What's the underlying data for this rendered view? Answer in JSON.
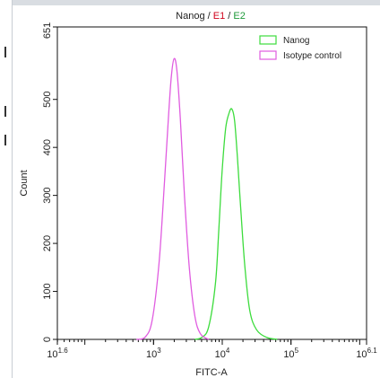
{
  "chart_data": {
    "type": "line",
    "title_parts": [
      {
        "text": "Nanog",
        "color": "#222222"
      },
      {
        "text": " / ",
        "color": "#222222"
      },
      {
        "text": "E1",
        "color": "#d0021b"
      },
      {
        "text": " / ",
        "color": "#222222"
      },
      {
        "text": "E2",
        "color": "#1f9a3a"
      }
    ],
    "xlabel": "FITC-A",
    "ylabel": "Count",
    "xscale": "log",
    "xlim_log10": [
      1.6,
      6.1
    ],
    "ylim": [
      0,
      651
    ],
    "x_ticks": [
      {
        "log": 1.6,
        "base": "10",
        "exp": "1.6"
      },
      {
        "log": 3,
        "base": "10",
        "exp": "3"
      },
      {
        "log": 4,
        "base": "10",
        "exp": "4"
      },
      {
        "log": 5,
        "base": "10",
        "exp": "5"
      },
      {
        "log": 6.1,
        "base": "10",
        "exp": "6.1"
      }
    ],
    "y_ticks": [
      0,
      100,
      200,
      300,
      400,
      500,
      651
    ],
    "legend_position": "top-right",
    "series": [
      {
        "name": "Nanog",
        "color": "#3ddc3d",
        "points": [
          [
            3.6,
            0
          ],
          [
            3.7,
            4
          ],
          [
            3.8,
            25
          ],
          [
            3.9,
            115
          ],
          [
            3.95,
            230
          ],
          [
            4.0,
            355
          ],
          [
            4.05,
            440
          ],
          [
            4.1,
            472
          ],
          [
            4.14,
            480
          ],
          [
            4.18,
            455
          ],
          [
            4.22,
            380
          ],
          [
            4.27,
            270
          ],
          [
            4.33,
            150
          ],
          [
            4.4,
            60
          ],
          [
            4.5,
            20
          ],
          [
            4.65,
            4
          ],
          [
            4.8,
            0
          ]
        ]
      },
      {
        "name": "Isotype control",
        "color": "#e05ce0",
        "points": [
          [
            2.75,
            0
          ],
          [
            2.88,
            5
          ],
          [
            2.98,
            40
          ],
          [
            3.08,
            160
          ],
          [
            3.16,
            330
          ],
          [
            3.22,
            470
          ],
          [
            3.26,
            550
          ],
          [
            3.3,
            585
          ],
          [
            3.34,
            560
          ],
          [
            3.39,
            460
          ],
          [
            3.45,
            300
          ],
          [
            3.52,
            150
          ],
          [
            3.6,
            50
          ],
          [
            3.68,
            12
          ],
          [
            3.8,
            0
          ]
        ]
      }
    ]
  },
  "left_edge_marks": 3
}
